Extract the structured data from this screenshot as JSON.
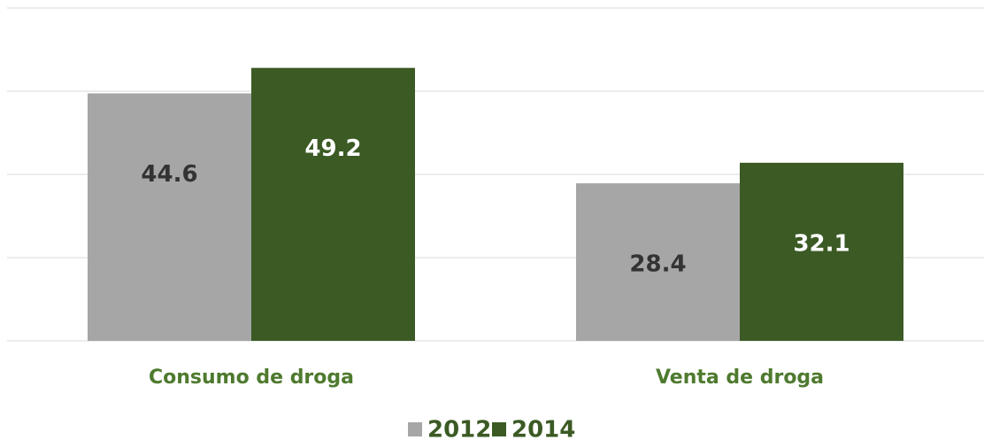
{
  "chart_data": {
    "type": "bar",
    "categories": [
      "Consumo de droga",
      "Venta de droga"
    ],
    "series": [
      {
        "name": "2012",
        "color": "#a6a6a6",
        "label_color": "#333333",
        "values": [
          44.6,
          28.4
        ]
      },
      {
        "name": "2014",
        "color": "#3b5a24",
        "label_color": "#ffffff",
        "values": [
          49.2,
          32.1
        ]
      }
    ],
    "ylim": [
      0,
      60
    ],
    "yticks": [
      0,
      15,
      30,
      45,
      60
    ],
    "grid": true,
    "category_color": "#4e7a2e",
    "legend": "bottom"
  }
}
